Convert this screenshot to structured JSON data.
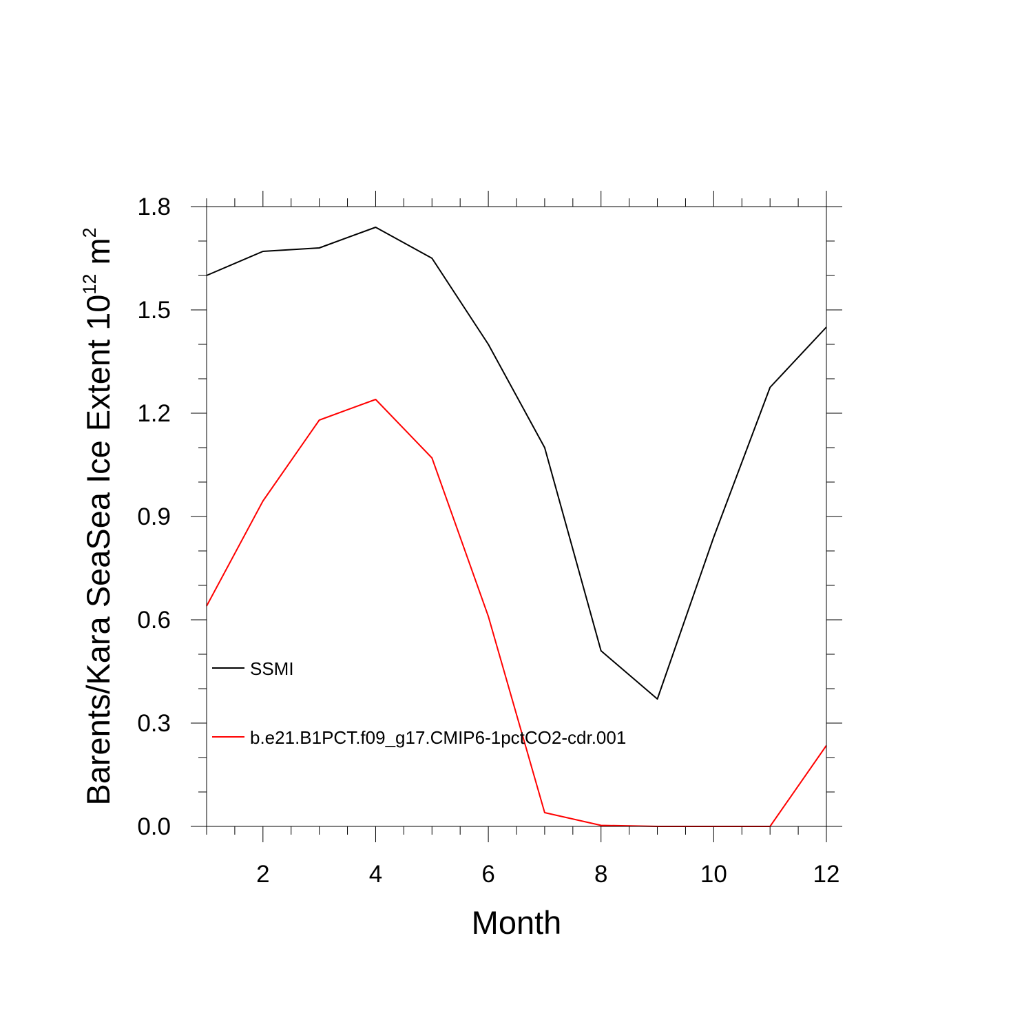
{
  "chart_data": {
    "type": "line",
    "xlabel": "Month",
    "ylabel_main": "Barents/Kara SeaSea Ice Extent 10",
    "ylabel_exp": "12",
    "ylabel_unit": " m",
    "ylabel_unit_exp": "2",
    "xlim": [
      1,
      12
    ],
    "ylim": [
      0,
      1.8
    ],
    "x_ticks": [
      2,
      4,
      6,
      8,
      10,
      12
    ],
    "x_tick_labels": [
      "2",
      "4",
      "6",
      "8",
      "10",
      "12"
    ],
    "y_ticks": [
      0,
      0.3,
      0.6,
      0.9,
      1.2,
      1.5,
      1.8
    ],
    "y_tick_labels": [
      "0.0",
      "0.3",
      "0.6",
      "0.9",
      "1.2",
      "1.5",
      "1.8"
    ],
    "grid": false,
    "legend_position": "lower-left",
    "x": [
      1,
      2,
      3,
      4,
      5,
      6,
      7,
      8,
      9,
      10,
      11,
      12
    ],
    "series": [
      {
        "name": "SSMI",
        "color": "#000000",
        "values": [
          1.6,
          1.67,
          1.68,
          1.74,
          1.65,
          1.4,
          1.1,
          0.51,
          0.37,
          0.84,
          1.275,
          1.45
        ]
      },
      {
        "name": "b.e21.B1PCT.f09_g17.CMIP6-1pctCO2-cdr.001",
        "color": "#ff0000",
        "values": [
          0.64,
          0.945,
          1.18,
          1.24,
          1.07,
          0.61,
          0.04,
          0.003,
          0.0,
          0.0,
          0.0,
          0.235
        ]
      }
    ]
  }
}
